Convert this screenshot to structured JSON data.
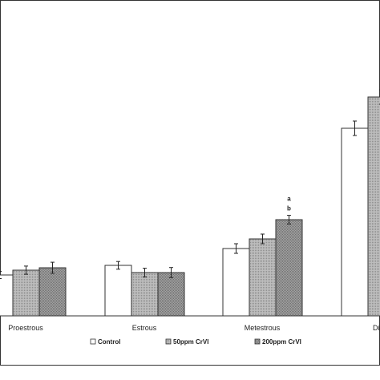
{
  "chart_data": {
    "type": "bar",
    "title": "",
    "xlabel": "",
    "ylabel": "",
    "categories": [
      "Proestrous",
      "Estrous",
      "Metestrous",
      "Diestrous"
    ],
    "category_labels_shown": [
      "Proestrous",
      "Estrous",
      "Metestrous",
      "Diesi"
    ],
    "ylim": [
      0,
      100
    ],
    "series": [
      {
        "name": "Control",
        "values": [
          17,
          21,
          28,
          78
        ],
        "errors": [
          1.5,
          1.6,
          2.0,
          3.0
        ]
      },
      {
        "name": "50ppm CrVI",
        "values": [
          19,
          18,
          32,
          91
        ],
        "errors": [
          1.7,
          1.8,
          2.0,
          3.0
        ]
      },
      {
        "name": "200ppm CrVI",
        "values": [
          20,
          18,
          40,
          null
        ],
        "errors": [
          2.3,
          2.1,
          1.8,
          null
        ]
      }
    ],
    "annotations": [
      {
        "category": "Metestrous",
        "series": "200ppm CrVI",
        "text": [
          "a",
          "b"
        ]
      }
    ],
    "legend_position": "bottom",
    "grid": false,
    "colors": {
      "Control": "#ffffff",
      "50ppm CrVI": "#b4b4b4",
      "200ppm CrVI": "#9a9a9a",
      "stroke": "#333333"
    }
  }
}
